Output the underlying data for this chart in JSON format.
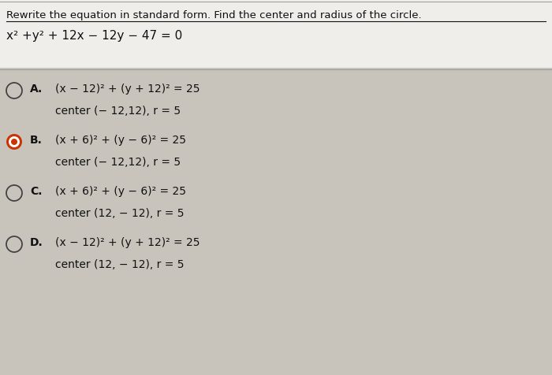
{
  "background_color": "#c8c4bc",
  "top_section_color": "#f0eeea",
  "title_line": "Rewrite the equation in standard form. Find the center and radius of the circle.",
  "equation": "x² +y² + 12x − 12y − 47 = 0",
  "options": [
    {
      "letter": "A",
      "selected": false,
      "line1": "(x − 12)² + (y + 12)² = 25",
      "line2": "center (− 12,12), r = 5"
    },
    {
      "letter": "B",
      "selected": true,
      "line1": "(x + 6)² + (y − 6)² = 25",
      "line2": "center (− 12,12), r = 5"
    },
    {
      "letter": "C",
      "selected": false,
      "line1": "(x + 6)² + (y − 6)² = 25",
      "line2": "center (12, − 12), r = 5"
    },
    {
      "letter": "D",
      "selected": false,
      "line1": "(x − 12)² + (y + 12)² = 25",
      "line2": "center (12, − 12), r = 5"
    }
  ],
  "circle_color_unselected": "#444444",
  "circle_color_selected": "#cc3300",
  "text_color": "#111111",
  "divider_color": "#999999",
  "font_size_title": 9.5,
  "font_size_equation": 11,
  "font_size_option_line1": 10,
  "font_size_option_line2": 10,
  "font_size_letter": 10
}
